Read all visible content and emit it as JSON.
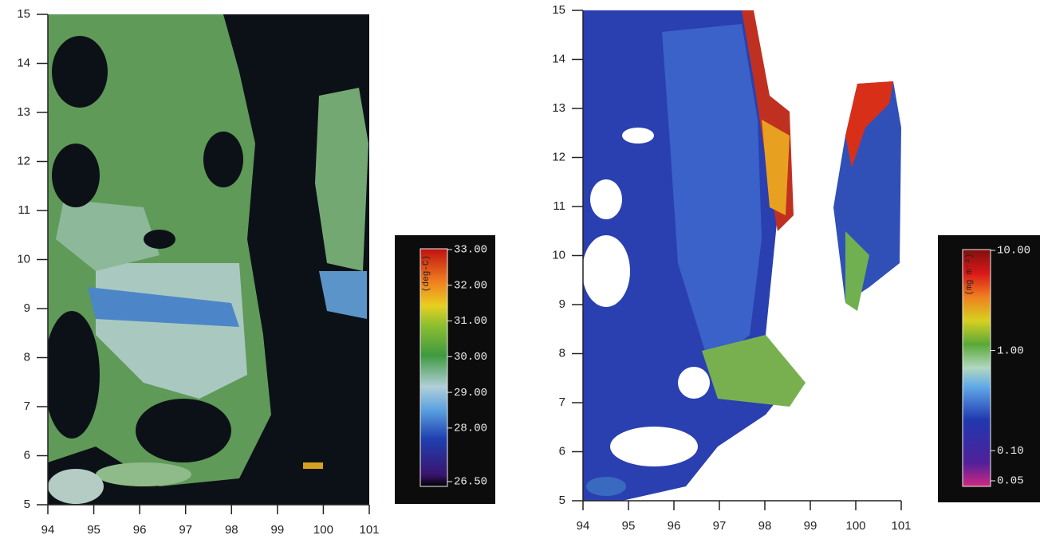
{
  "panels": [
    {
      "xlim": [
        94,
        101
      ],
      "ylim": [
        5,
        15
      ],
      "xticks": [
        94,
        95,
        96,
        97,
        98,
        99,
        100,
        101
      ],
      "yticks": [
        5,
        6,
        7,
        8,
        9,
        10,
        11,
        12,
        13,
        14,
        15
      ],
      "colorbar": {
        "unit": "(deg-C)",
        "scale": "linear",
        "lim": [
          26.5,
          33
        ],
        "ticks": [
          {
            "value": 33,
            "label": "33.00"
          },
          {
            "value": 32,
            "label": "32.00"
          },
          {
            "value": 31,
            "label": "31.00"
          },
          {
            "value": 30,
            "label": "30.00"
          },
          {
            "value": 29,
            "label": "29.00"
          },
          {
            "value": 28,
            "label": "28.00"
          },
          {
            "value": 26.5,
            "label": "26.50"
          }
        ]
      }
    },
    {
      "xlim": [
        94,
        101
      ],
      "ylim": [
        5,
        15
      ],
      "xticks": [
        94,
        95,
        96,
        97,
        98,
        99,
        100,
        101
      ],
      "yticks": [
        5,
        6,
        7,
        8,
        9,
        10,
        11,
        12,
        13,
        14,
        15
      ],
      "colorbar": {
        "unit": "(mg m⁻³)",
        "scale": "log",
        "lim": [
          0.05,
          10
        ],
        "ticks": [
          {
            "value": 10,
            "label": "10.00"
          },
          {
            "value": 1,
            "label": "1.00"
          },
          {
            "value": 0.1,
            "label": "0.10"
          },
          {
            "value": 0.05,
            "label": "0.05"
          }
        ]
      }
    }
  ]
}
